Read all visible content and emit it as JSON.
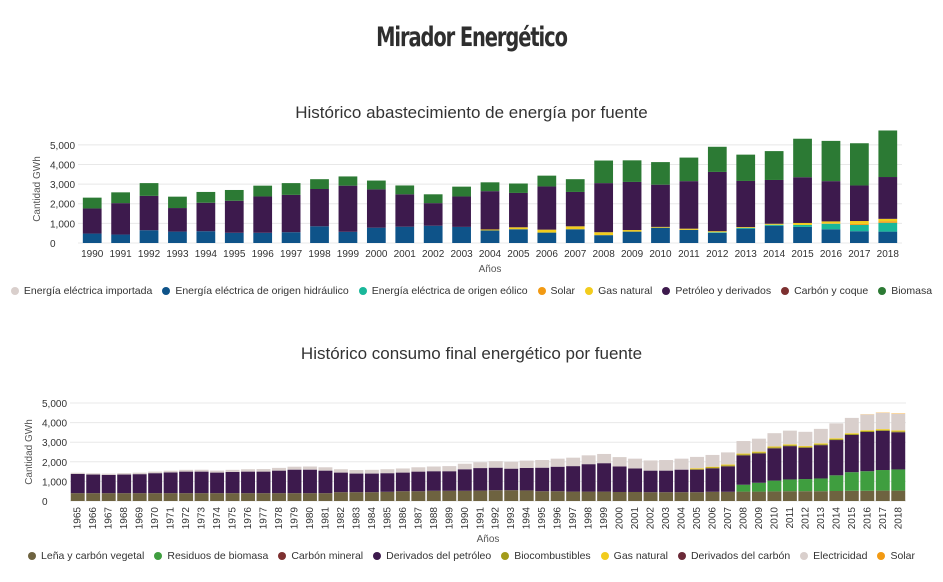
{
  "page": {
    "title": "Mirador Energético"
  },
  "chart_data": [
    {
      "type": "bar",
      "stacked": true,
      "title": "Histórico abastecimiento de energía por fuente",
      "xlabel": "Años",
      "ylabel": "Cantidad GWh",
      "ylim": [
        0,
        5500
      ],
      "yticks": [
        0,
        1000,
        2000,
        3000,
        4000,
        5000
      ],
      "ytick_labels": [
        "0",
        "1,000",
        "2,000",
        "3,000",
        "4,000",
        "5,000"
      ],
      "categories": [
        "1990",
        "1991",
        "1992",
        "1993",
        "1994",
        "1995",
        "1996",
        "1997",
        "1998",
        "1999",
        "2000",
        "2001",
        "2002",
        "2003",
        "2004",
        "2005",
        "2006",
        "2007",
        "2008",
        "2009",
        "2010",
        "2011",
        "2012",
        "2013",
        "2014",
        "2015",
        "2016",
        "2017",
        "2018"
      ],
      "series": [
        {
          "name": "Energía eléctrica importada",
          "color": "#d9cfcc",
          "values": [
            0,
            0,
            0,
            0,
            0,
            0,
            0,
            0,
            0,
            0,
            0,
            0,
            0,
            0,
            0,
            0,
            0,
            0,
            0,
            0,
            0,
            0,
            0,
            0,
            0,
            0,
            0,
            0,
            0
          ]
        },
        {
          "name": "Energía eléctrica de origen hidráulico",
          "color": "#0e5389",
          "values": [
            480,
            430,
            650,
            580,
            600,
            520,
            520,
            550,
            850,
            570,
            780,
            830,
            880,
            820,
            640,
            700,
            530,
            700,
            400,
            580,
            780,
            670,
            520,
            730,
            880,
            820,
            700,
            600,
            580
          ]
        },
        {
          "name": "Energía eléctrica de origen eólico",
          "color": "#19b79a",
          "values": [
            0,
            0,
            0,
            0,
            0,
            0,
            0,
            0,
            0,
            0,
            0,
            0,
            0,
            0,
            0,
            0,
            0,
            0,
            0,
            0,
            0,
            0,
            30,
            40,
            50,
            100,
            280,
            320,
            450
          ]
        },
        {
          "name": "Solar",
          "color": "#f29a13",
          "values": [
            0,
            0,
            0,
            0,
            0,
            0,
            0,
            0,
            0,
            0,
            0,
            0,
            0,
            0,
            0,
            0,
            0,
            0,
            0,
            0,
            0,
            0,
            0,
            0,
            0,
            0,
            20,
            50,
            80
          ]
        },
        {
          "name": "Gas natural",
          "color": "#f2cc1d",
          "values": [
            0,
            0,
            0,
            0,
            0,
            0,
            0,
            0,
            0,
            0,
            0,
            0,
            0,
            0,
            50,
            100,
            150,
            150,
            150,
            80,
            40,
            60,
            50,
            40,
            50,
            100,
            100,
            150,
            120
          ]
        },
        {
          "name": "Petróleo y derivados",
          "color": "#3d1a4d",
          "values": [
            1280,
            1600,
            1750,
            1200,
            1450,
            1630,
            1850,
            1900,
            1900,
            2350,
            1950,
            1650,
            1150,
            1550,
            1950,
            1750,
            2200,
            1750,
            2500,
            2450,
            2150,
            2420,
            3020,
            2350,
            2230,
            2330,
            2050,
            1810,
            2130
          ]
        },
        {
          "name": "Carbón y coque",
          "color": "#7d3030",
          "values": [
            0,
            0,
            0,
            0,
            0,
            0,
            0,
            0,
            0,
            0,
            0,
            0,
            0,
            0,
            0,
            0,
            0,
            0,
            0,
            0,
            0,
            0,
            0,
            0,
            0,
            0,
            0,
            0,
            0
          ]
        },
        {
          "name": "Biomasa",
          "color": "#2c7a34",
          "values": [
            550,
            550,
            650,
            580,
            550,
            550,
            550,
            600,
            500,
            470,
            450,
            450,
            450,
            500,
            450,
            480,
            550,
            650,
            1150,
            1100,
            1150,
            1200,
            1280,
            1340,
            1470,
            1960,
            2050,
            2150,
            2370
          ]
        }
      ]
    },
    {
      "type": "bar",
      "stacked": true,
      "title": "Histórico consumo final energético por fuente",
      "xlabel": "Años",
      "ylabel": "Cantidad GWh",
      "ylim": [
        0,
        5000
      ],
      "yticks": [
        0,
        1000,
        2000,
        3000,
        4000,
        5000
      ],
      "ytick_labels": [
        "0",
        "1,000",
        "2,000",
        "3,000",
        "4,000",
        "5,000"
      ],
      "categories": [
        "1965",
        "1966",
        "1967",
        "1968",
        "1969",
        "1970",
        "1971",
        "1972",
        "1973",
        "1974",
        "1975",
        "1976",
        "1977",
        "1978",
        "1979",
        "1980",
        "1981",
        "1982",
        "1983",
        "1984",
        "1985",
        "1986",
        "1987",
        "1988",
        "1989",
        "1990",
        "1991",
        "1992",
        "1993",
        "1994",
        "1995",
        "1996",
        "1997",
        "1998",
        "1999",
        "2000",
        "2001",
        "2002",
        "2003",
        "2004",
        "2005",
        "2006",
        "2007",
        "2008",
        "2009",
        "2010",
        "2011",
        "2012",
        "2013",
        "2014",
        "2015",
        "2016",
        "2017",
        "2018"
      ],
      "series": [
        {
          "name": "Leña y carbón vegetal",
          "color": "#6e6340",
          "values": [
            400,
            400,
            400,
            400,
            400,
            400,
            400,
            400,
            400,
            400,
            400,
            400,
            400,
            400,
            400,
            400,
            400,
            450,
            450,
            450,
            470,
            500,
            500,
            520,
            520,
            520,
            530,
            550,
            550,
            540,
            500,
            500,
            480,
            480,
            480,
            460,
            460,
            450,
            450,
            450,
            450,
            470,
            470,
            480,
            480,
            490,
            500,
            500,
            500,
            510,
            520,
            520,
            530,
            530
          ]
        },
        {
          "name": "Residuos de biomasa",
          "color": "#3f9e3f",
          "values": [
            0,
            0,
            0,
            0,
            0,
            0,
            0,
            0,
            0,
            0,
            0,
            0,
            0,
            0,
            0,
            0,
            0,
            0,
            0,
            0,
            0,
            0,
            0,
            0,
            0,
            0,
            0,
            0,
            0,
            0,
            0,
            0,
            0,
            0,
            0,
            0,
            0,
            0,
            0,
            0,
            0,
            0,
            0,
            350,
            450,
            550,
            600,
            620,
            650,
            800,
            950,
            1000,
            1050,
            1080
          ]
        },
        {
          "name": "Carbón mineral",
          "color": "#7d3030",
          "values": [
            0,
            0,
            0,
            0,
            0,
            0,
            0,
            0,
            0,
            0,
            0,
            0,
            0,
            0,
            0,
            0,
            0,
            0,
            0,
            0,
            0,
            0,
            0,
            0,
            0,
            0,
            0,
            0,
            0,
            0,
            0,
            0,
            0,
            0,
            0,
            0,
            0,
            0,
            0,
            0,
            0,
            0,
            0,
            0,
            0,
            0,
            0,
            0,
            0,
            0,
            0,
            0,
            0,
            0
          ]
        },
        {
          "name": "Derivados del petróleo",
          "color": "#3d1a4d",
          "values": [
            980,
            950,
            930,
            950,
            970,
            1020,
            1060,
            1100,
            1100,
            1050,
            1080,
            1100,
            1100,
            1150,
            1200,
            1200,
            1150,
            1000,
            950,
            950,
            950,
            950,
            1000,
            1000,
            1000,
            1100,
            1150,
            1150,
            1100,
            1150,
            1200,
            1250,
            1300,
            1400,
            1450,
            1300,
            1200,
            1100,
            1100,
            1150,
            1150,
            1200,
            1300,
            1500,
            1500,
            1650,
            1700,
            1600,
            1700,
            1800,
            1900,
            2000,
            2000,
            1900
          ]
        },
        {
          "name": "Biocombustibles",
          "color": "#a39b1a",
          "values": [
            0,
            0,
            0,
            0,
            0,
            0,
            0,
            0,
            0,
            0,
            0,
            0,
            0,
            0,
            0,
            0,
            0,
            0,
            0,
            0,
            0,
            0,
            0,
            0,
            0,
            0,
            0,
            0,
            0,
            0,
            0,
            0,
            0,
            0,
            0,
            0,
            0,
            0,
            0,
            0,
            30,
            40,
            50,
            50,
            50,
            50,
            50,
            50,
            50,
            50,
            50,
            50,
            50,
            50
          ]
        },
        {
          "name": "Gas natural",
          "color": "#f2cc1d",
          "values": [
            0,
            0,
            0,
            0,
            0,
            0,
            0,
            0,
            0,
            0,
            0,
            0,
            0,
            0,
            0,
            0,
            0,
            0,
            0,
            0,
            0,
            0,
            0,
            0,
            0,
            0,
            0,
            0,
            0,
            0,
            0,
            0,
            0,
            0,
            0,
            0,
            0,
            0,
            0,
            0,
            40,
            40,
            40,
            40,
            40,
            40,
            40,
            40,
            40,
            40,
            40,
            40,
            40,
            40
          ]
        },
        {
          "name": "Derivados del carbón",
          "color": "#6b2a38",
          "values": [
            0,
            0,
            0,
            0,
            0,
            0,
            0,
            0,
            0,
            0,
            0,
            0,
            0,
            0,
            0,
            0,
            0,
            0,
            0,
            0,
            0,
            0,
            0,
            0,
            0,
            0,
            0,
            0,
            0,
            0,
            0,
            0,
            0,
            0,
            0,
            0,
            0,
            0,
            0,
            0,
            0,
            0,
            0,
            0,
            0,
            0,
            0,
            0,
            0,
            0,
            0,
            0,
            0,
            0
          ]
        },
        {
          "name": "Electricidad",
          "color": "#d9cfcc",
          "values": [
            60,
            60,
            65,
            70,
            75,
            80,
            85,
            90,
            95,
            100,
            110,
            120,
            130,
            140,
            150,
            160,
            170,
            170,
            180,
            190,
            200,
            210,
            220,
            240,
            260,
            280,
            300,
            330,
            350,
            370,
            390,
            410,
            430,
            450,
            470,
            480,
            500,
            520,
            540,
            560,
            580,
            600,
            620,
            640,
            660,
            680,
            700,
            720,
            740,
            760,
            780,
            800,
            820,
            840
          ]
        },
        {
          "name": "Solar",
          "color": "#f29a13",
          "values": [
            0,
            0,
            0,
            0,
            0,
            0,
            0,
            0,
            0,
            0,
            0,
            0,
            0,
            0,
            0,
            0,
            0,
            0,
            0,
            0,
            0,
            0,
            0,
            0,
            0,
            0,
            0,
            0,
            0,
            0,
            0,
            0,
            0,
            0,
            0,
            0,
            0,
            0,
            0,
            0,
            0,
            0,
            0,
            0,
            0,
            0,
            0,
            0,
            0,
            0,
            0,
            10,
            15,
            20
          ]
        }
      ]
    }
  ]
}
